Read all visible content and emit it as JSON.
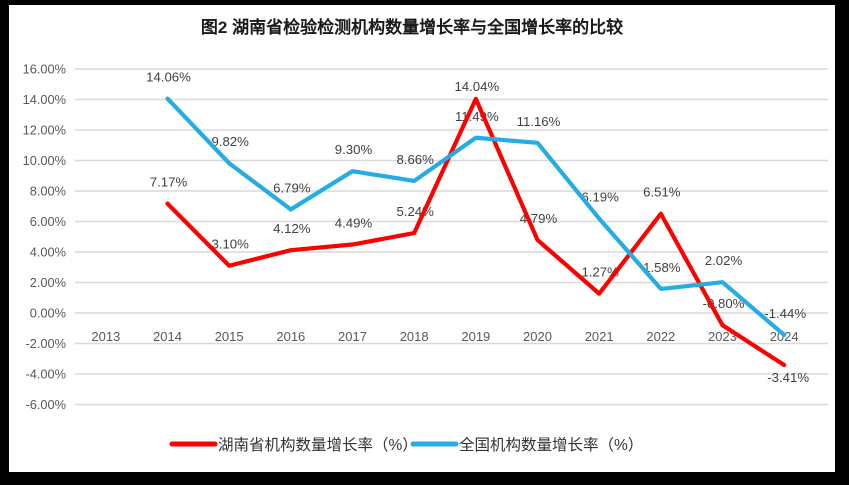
{
  "frame": {
    "outer_background": "#000000",
    "chart_background": "#FFFFFF",
    "gridline_color": "#D9D9D9",
    "axis_text_color": "#595959",
    "label_text_color": "#404040",
    "title_color": "#1A1A1A"
  },
  "chart_data": {
    "type": "line",
    "title": "图2 湖南省检验检测机构数量增长率与全国增长率的比较",
    "categories": [
      "2013",
      "2014",
      "2015",
      "2016",
      "2017",
      "2018",
      "2019",
      "2020",
      "2021",
      "2022",
      "2023",
      "2024"
    ],
    "series": [
      {
        "name": "湖南省机构数量增长率（%）",
        "color": "#FF0000",
        "values": [
          null,
          7.17,
          3.1,
          4.12,
          4.49,
          5.24,
          14.04,
          4.79,
          1.27,
          6.51,
          -0.8,
          -3.41
        ],
        "labels": [
          "",
          "7.17%",
          "3.10%",
          "4.12%",
          "4.49%",
          "5.24%",
          "14.04%",
          "4.79%",
          "1.27%",
          "6.51%",
          "-0.80%",
          "-3.41%"
        ]
      },
      {
        "name": "全国机构数量增长率（%）",
        "color": "#25ACE3",
        "values": [
          null,
          14.06,
          9.82,
          6.79,
          9.3,
          8.66,
          11.49,
          11.16,
          6.19,
          1.58,
          2.02,
          -1.44
        ],
        "labels": [
          "",
          "14.06%",
          "9.82%",
          "6.79%",
          "9.30%",
          "8.66%",
          "11.49%",
          "11.16%",
          "6.19%",
          "1.58%",
          "2.02%",
          "-1.44%"
        ]
      }
    ],
    "y_axis": {
      "tick_labels": [
        "16.00%",
        "14.00%",
        "12.00%",
        "10.00%",
        "8.00%",
        "6.00%",
        "4.00%",
        "2.00%",
        "0.00%",
        "-2.00%",
        "-4.00%",
        "-6.00%"
      ],
      "max": 16,
      "min": -6,
      "step": 2
    },
    "grid": true,
    "legend_position": "bottom"
  }
}
